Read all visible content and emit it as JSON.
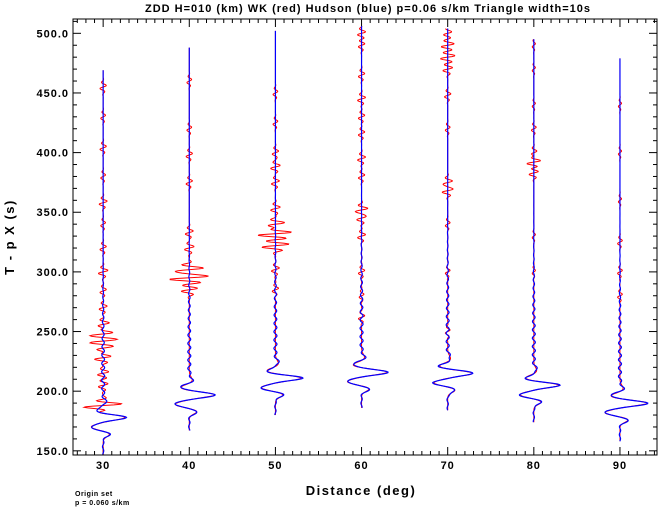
{
  "chart_data": {
    "type": "line",
    "title": "ZDD H=010 (km) WK (red) Hudson (blue) p=0.06 s/km Triangle width=10s",
    "xlabel": "Distance (deg)",
    "ylabel": "T - p X (s)",
    "xlim": [
      26.5,
      94.3
    ],
    "ylim": [
      146.5,
      512.0
    ],
    "x_ticks": [
      30,
      40,
      50,
      60,
      70,
      80,
      90
    ],
    "x_tick_labels": [
      "30",
      "40",
      "50",
      "60",
      "70",
      "80",
      "90"
    ],
    "y_ticks": [
      150,
      200,
      250,
      300,
      350,
      400,
      450,
      500
    ],
    "y_tick_labels": [
      "150.0",
      "200.0",
      "250.0",
      "300.0",
      "350.0",
      "400.0",
      "450.0",
      "500.0"
    ],
    "grid": false,
    "series_colors": {
      "WK": "#ff0000",
      "Hudson": "#0000ff"
    },
    "traces": [
      {
        "distance": 30,
        "t_start": 147,
        "t_end": 469,
        "arrival": 178,
        "amp": 2.6,
        "wk_noise": [
          [
            188,
            2.1
          ],
          [
            205,
            0.6
          ],
          [
            215,
            0.7
          ],
          [
            228,
            1.1
          ],
          [
            236,
            0.8
          ],
          [
            242,
            1.3
          ],
          [
            248,
            1.2
          ],
          [
            256,
            0.8
          ],
          [
            270,
            0.5
          ],
          [
            284,
            0.4
          ],
          [
            300,
            0.6
          ],
          [
            320,
            0.4
          ],
          [
            340,
            0.3
          ],
          [
            358,
            0.5
          ],
          [
            380,
            0.3
          ],
          [
            404,
            0.4
          ],
          [
            430,
            0.3
          ],
          [
            455,
            0.4
          ]
        ]
      },
      {
        "distance": 40,
        "t_start": 167,
        "t_end": 488,
        "arrival": 197,
        "amp": 3.1,
        "wk_noise": [
          [
            285,
            1.0
          ],
          [
            295,
            2.5
          ],
          [
            302,
            1.8
          ],
          [
            320,
            0.6
          ],
          [
            333,
            0.5
          ],
          [
            375,
            0.4
          ],
          [
            398,
            0.4
          ],
          [
            420,
            0.3
          ],
          [
            460,
            0.3
          ]
        ]
      },
      {
        "distance": 50,
        "t_start": 180,
        "t_end": 502,
        "arrival": 211,
        "amp": 3.1,
        "wk_noise": [
          [
            285,
            0.4
          ],
          [
            302,
            0.5
          ],
          [
            322,
            1.7
          ],
          [
            332,
            2.2
          ],
          [
            340,
            1.2
          ],
          [
            353,
            0.6
          ],
          [
            375,
            0.5
          ],
          [
            388,
            0.6
          ],
          [
            400,
            0.4
          ],
          [
            425,
            0.3
          ],
          [
            450,
            0.3
          ]
        ]
      },
      {
        "distance": 60,
        "t_start": 186,
        "t_end": 506,
        "arrival": 216,
        "amp": 3.1,
        "wk_noise": [
          [
            262,
            0.4
          ],
          [
            280,
            0.3
          ],
          [
            300,
            0.4
          ],
          [
            330,
            0.5
          ],
          [
            345,
            0.6
          ],
          [
            352,
            0.8
          ],
          [
            380,
            0.4
          ],
          [
            395,
            0.5
          ],
          [
            416,
            0.4
          ],
          [
            430,
            0.4
          ],
          [
            445,
            0.5
          ],
          [
            465,
            0.4
          ],
          [
            490,
            0.4
          ],
          [
            500,
            0.5
          ]
        ]
      },
      {
        "distance": 70,
        "t_start": 184,
        "t_end": 504,
        "arrival": 215,
        "amp": 3.0,
        "wk_noise": [
          [
            250,
            0.3
          ],
          [
            300,
            0.3
          ],
          [
            340,
            0.3
          ],
          [
            368,
            0.7
          ],
          [
            375,
            0.6
          ],
          [
            420,
            0.3
          ],
          [
            448,
            0.4
          ],
          [
            470,
            0.6
          ],
          [
            480,
            0.9
          ],
          [
            490,
            0.8
          ],
          [
            500,
            0.5
          ]
        ]
      },
      {
        "distance": 80,
        "t_start": 174,
        "t_end": 495,
        "arrival": 205,
        "amp": 3.0,
        "wk_noise": [
          [
            300,
            0.2
          ],
          [
            330,
            0.2
          ],
          [
            383,
            0.6
          ],
          [
            392,
            0.9
          ],
          [
            400,
            0.4
          ],
          [
            420,
            0.3
          ],
          [
            440,
            0.2
          ],
          [
            470,
            0.2
          ],
          [
            490,
            0.2
          ]
        ]
      },
      {
        "distance": 90,
        "t_start": 158,
        "t_end": 479,
        "arrival": 190,
        "amp": 3.3,
        "wk_noise": [
          [
            280,
            0.3
          ],
          [
            300,
            0.3
          ],
          [
            325,
            0.3
          ],
          [
            360,
            0.2
          ],
          [
            400,
            0.2
          ],
          [
            440,
            0.2
          ]
        ]
      }
    ]
  },
  "footer": {
    "line1": "Origin set",
    "line2": "p =  0.060 s/km"
  }
}
